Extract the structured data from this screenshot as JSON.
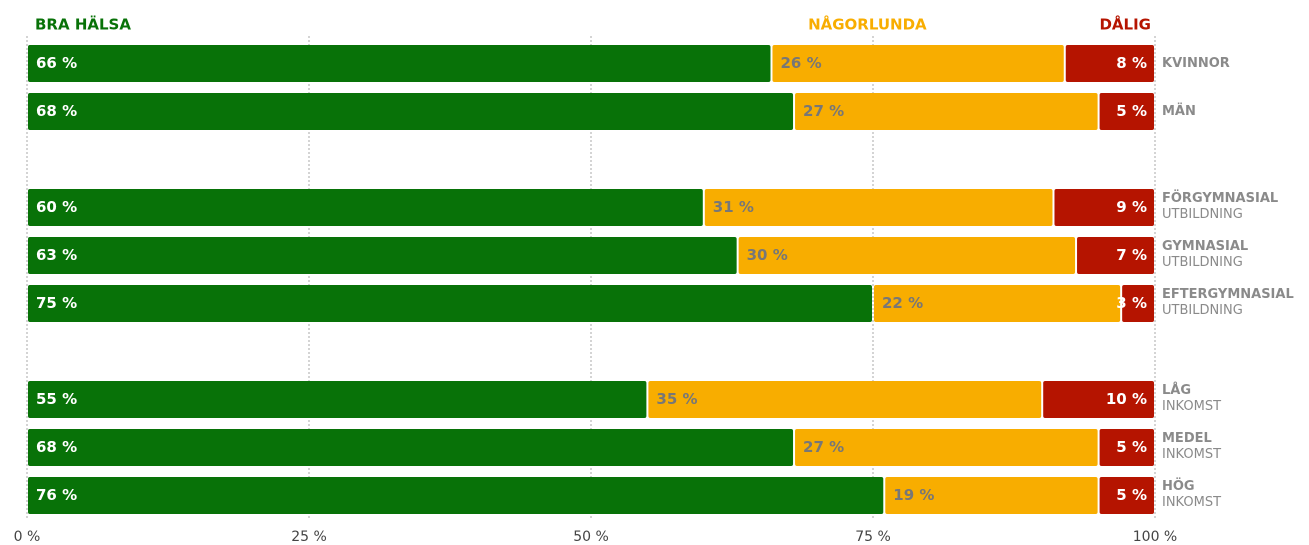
{
  "chart_data": {
    "type": "stacked-bar-horizontal",
    "categories": [
      [
        "KVINNOR"
      ],
      [
        "MÄN"
      ],
      null,
      [
        "FÖRGYMNASIAL",
        "UTBILDNING"
      ],
      [
        "GYMNASIAL",
        "UTBILDNING"
      ],
      [
        "EFTERGYMNASIAL",
        "UTBILDNING"
      ],
      null,
      [
        "LÅG",
        "INKOMST"
      ],
      [
        "MEDEL",
        "INKOMST"
      ],
      [
        "HÖG",
        "INKOMST"
      ]
    ],
    "series": [
      {
        "name": "BRA HÄLSA",
        "color": "#087208",
        "values": [
          66,
          68,
          null,
          60,
          63,
          75,
          null,
          55,
          68,
          76
        ],
        "value_labels": [
          "66 %",
          "68 %",
          null,
          "60 %",
          "63 %",
          "75 %",
          null,
          "55 %",
          "68 %",
          "76 %"
        ]
      },
      {
        "name": "NÅGORLUNDA",
        "color": "#f8ad00",
        "values": [
          26,
          27,
          null,
          31,
          30,
          22,
          null,
          35,
          27,
          19
        ],
        "value_labels": [
          "26 %",
          "27 %",
          null,
          "31 %",
          "30 %",
          "22 %",
          null,
          "35 %",
          "27 %",
          "19 %"
        ]
      },
      {
        "name": "DÅLIG",
        "color": "#b51400",
        "values": [
          8,
          5,
          null,
          9,
          7,
          3,
          null,
          10,
          5,
          5
        ],
        "value_labels": [
          "8 %",
          "5 %",
          null,
          "9 %",
          "7 %",
          "3 %",
          null,
          "10 %",
          "5 %",
          "5 %"
        ]
      }
    ],
    "xlim": [
      0,
      100
    ],
    "xticks": [
      {
        "value": 0,
        "label": "0 %"
      },
      {
        "value": 25,
        "label": "25 %"
      },
      {
        "value": 50,
        "label": "50 %"
      },
      {
        "value": 75,
        "label": "75 %"
      },
      {
        "value": 100,
        "label": "100 %"
      }
    ],
    "grid": true
  }
}
